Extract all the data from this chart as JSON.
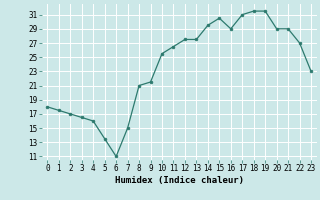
{
  "x": [
    0,
    1,
    2,
    3,
    4,
    5,
    6,
    7,
    8,
    9,
    10,
    11,
    12,
    13,
    14,
    15,
    16,
    17,
    18,
    19,
    20,
    21,
    22,
    23
  ],
  "y": [
    18,
    17.5,
    17,
    16.5,
    16,
    13.5,
    11,
    15,
    21,
    21.5,
    25.5,
    26.5,
    27.5,
    27.5,
    29.5,
    30.5,
    29,
    31,
    31.5,
    31.5,
    29,
    29,
    27,
    23
  ],
  "xlabel": "Humidex (Indice chaleur)",
  "xlim": [
    -0.5,
    23.5
  ],
  "ylim": [
    10.5,
    32.5
  ],
  "yticks": [
    11,
    13,
    15,
    17,
    19,
    21,
    23,
    25,
    27,
    29,
    31
  ],
  "xticks": [
    0,
    1,
    2,
    3,
    4,
    5,
    6,
    7,
    8,
    9,
    10,
    11,
    12,
    13,
    14,
    15,
    16,
    17,
    18,
    19,
    20,
    21,
    22,
    23
  ],
  "line_color": "#2d7a6e",
  "bg_color": "#cce8e8",
  "grid_color": "#ffffff",
  "marker_size": 2.0,
  "line_width": 0.9,
  "tick_fontsize": 5.5,
  "xlabel_fontsize": 6.5
}
